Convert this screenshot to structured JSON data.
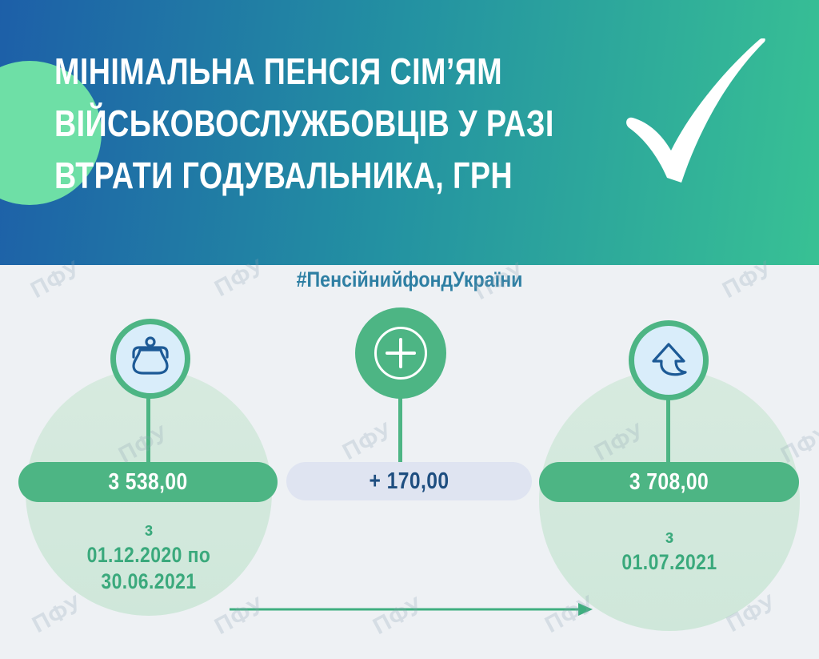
{
  "header": {
    "title_lines": [
      "МІНІМАЛЬНА ПЕНСІЯ СІМ’ЯМ",
      "ВІЙСЬКОВОСЛУЖБОВЦІВ У РАЗІ",
      "ВТРАТИ ГОДУВАЛЬНИКА, ГРН"
    ]
  },
  "hashtag": "#ПенсійнийфондУкраїни",
  "watermark_text": "ПФУ",
  "steps": {
    "before": {
      "amount": "3 538,00",
      "prefix": "з",
      "period_line1": "01.12.2020 по",
      "period_line2": "30.06.2021",
      "icon": "purse-icon"
    },
    "increase": {
      "amount": "+ 170,00",
      "icon": "plus-icon"
    },
    "after": {
      "amount": "3 708,00",
      "prefix": "з",
      "period_line1": "01.07.2021",
      "icon": "arrow-up-icon"
    }
  },
  "colors": {
    "gradient_left": "#1d5fa8",
    "gradient_mid": "#2391a2",
    "gradient_right": "#38c194",
    "mint_circle": "#6edfa6",
    "pill_green": "#4db584",
    "pill_lavender": "#dfe4f1",
    "amount_navy": "#1e4e80",
    "date_green": "#3aa97c",
    "hashtag_teal": "#2e7fa3",
    "icon_blue": "#1d5a96",
    "icon_circle_fill": "#d9edfa",
    "big_circle_fill": "#cfe7da",
    "background": "#eef1f4",
    "checkmark": "#ffffff"
  }
}
